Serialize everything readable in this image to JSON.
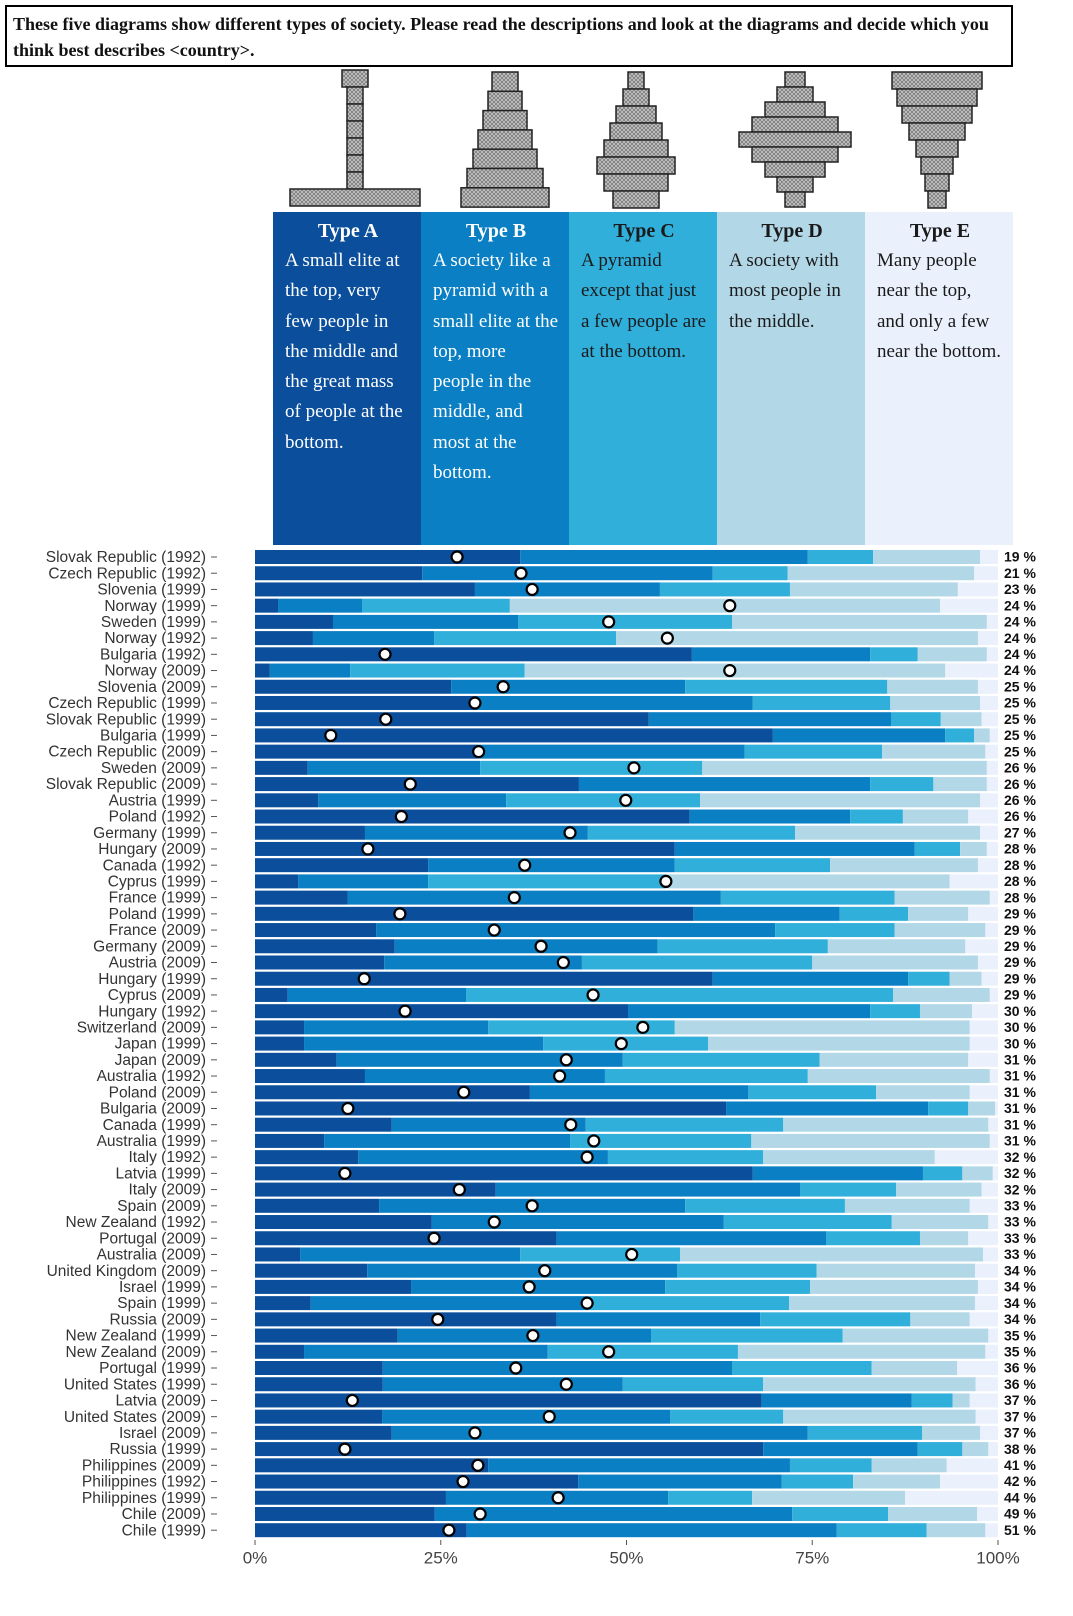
{
  "question": "These five diagrams show different types of society. Please read the descriptions and look at the diagrams and decide which you think best describes <country>.",
  "chart_data": {
    "type": "stacked-bar-horizontal",
    "categories": [
      "Slovak Republic (1992)",
      "Czech Republic (1992)",
      "Slovenia (1999)",
      "Norway (1999)",
      "Sweden (1999)",
      "Norway (1992)",
      "Bulgaria (1992)",
      "Norway (2009)",
      "Slovenia (2009)",
      "Czech Republic (1999)",
      "Slovak Republic (1999)",
      "Bulgaria (1999)",
      "Czech Republic (2009)",
      "Sweden (2009)",
      "Slovak Republic (2009)",
      "Austria (1999)",
      "Poland (1992)",
      "Germany (1999)",
      "Hungary (2009)",
      "Canada (1992)",
      "Cyprus (1999)",
      "France (1999)",
      "Poland (1999)",
      "France (2009)",
      "Germany (2009)",
      "Austria (2009)",
      "Hungary (1999)",
      "Cyprus (2009)",
      "Hungary (1992)",
      "Switzerland (2009)",
      "Japan (1999)",
      "Japan (2009)",
      "Australia (1992)",
      "Poland (2009)",
      "Bulgaria (2009)",
      "Canada (1999)",
      "Australia (1999)",
      "Italy (1992)",
      "Latvia (1999)",
      "Italy (2009)",
      "Spain (2009)",
      "New Zealand (1992)",
      "Portugal (2009)",
      "Australia (2009)",
      "United Kingdom (2009)",
      "Israel (1999)",
      "Spain (1999)",
      "Russia (2009)",
      "New Zealand (1999)",
      "New Zealand (2009)",
      "Portugal (1999)",
      "United States (1999)",
      "Latvia (2009)",
      "United States (2009)",
      "Israel (2009)",
      "Russia (1999)",
      "Philippines (2009)",
      "Philippines (1992)",
      "Philippines (1999)",
      "Chile (2009)",
      "Chile (1999)"
    ],
    "series": [
      {
        "name": "Type A",
        "color": "#0b4f9c",
        "text_color": "#ffffff",
        "description": "A small elite at the top, very few people in the middle and the great mass of people at the bottom.",
        "values": [
          35.7,
          22.5,
          29.6,
          3.1,
          10.5,
          7.8,
          58.8,
          2.0,
          26.4,
          30.0,
          53.0,
          69.7,
          30.0,
          7.1,
          43.6,
          8.5,
          58.5,
          14.8,
          56.5,
          23.3,
          5.8,
          12.5,
          59.0,
          16.3,
          18.8,
          17.4,
          61.6,
          4.4,
          50.2,
          6.6,
          6.6,
          11.0,
          14.8,
          37.0,
          63.4,
          18.4,
          9.3,
          13.9,
          67.0,
          32.4,
          16.7,
          23.8,
          40.6,
          6.1,
          15.1,
          21.0,
          7.5,
          40.6,
          19.2,
          6.6,
          17.2,
          17.2,
          68.2,
          17.1,
          18.4,
          68.4,
          31.4,
          43.5,
          25.7,
          24.2,
          28.5
        ]
      },
      {
        "name": "Type B",
        "color": "#0a7fc3",
        "text_color": "#ffffff",
        "description": "A society like a pyramid with a small elite at the top, more people in the middle, and most at the bottom.",
        "values": [
          38.7,
          39.1,
          24.9,
          11.3,
          24.9,
          16.3,
          24.0,
          10.8,
          31.5,
          37.0,
          32.6,
          23.2,
          35.9,
          23.2,
          39.2,
          25.3,
          21.6,
          30.0,
          32.3,
          33.2,
          17.5,
          50.2,
          19.7,
          53.7,
          35.4,
          26.6,
          26.3,
          24.0,
          32.6,
          24.8,
          32.2,
          38.5,
          32.3,
          29.4,
          27.2,
          26.1,
          33.1,
          33.6,
          22.9,
          41.0,
          41.2,
          39.3,
          36.3,
          29.6,
          41.7,
          34.2,
          37.3,
          27.4,
          34.1,
          32.8,
          47.0,
          32.3,
          20.2,
          38.8,
          56.0,
          20.8,
          40.6,
          27.4,
          29.9,
          48.1,
          49.8
        ]
      },
      {
        "name": "Type C",
        "color": "#30afda",
        "text_color": "#1a1a1a",
        "description": "A pyramid except that just a few people are at the bottom.",
        "values": [
          8.8,
          10.1,
          17.5,
          19.9,
          28.8,
          24.5,
          6.4,
          23.5,
          27.2,
          18.5,
          6.7,
          3.9,
          18.5,
          29.9,
          8.5,
          26.1,
          7.1,
          27.9,
          6.1,
          20.9,
          32.0,
          23.4,
          9.2,
          16.1,
          22.9,
          31.0,
          5.6,
          57.5,
          6.7,
          25.1,
          22.2,
          26.5,
          27.3,
          17.2,
          5.4,
          26.6,
          24.4,
          20.9,
          5.3,
          12.9,
          21.5,
          22.6,
          12.6,
          21.5,
          18.8,
          19.5,
          27.1,
          20.2,
          25.8,
          25.6,
          18.8,
          18.9,
          5.5,
          15.2,
          15.4,
          6.0,
          11.0,
          9.6,
          11.3,
          12.9,
          12.1
        ]
      },
      {
        "name": "Type D",
        "color": "#b2d7e7",
        "text_color": "#1a1a1a",
        "description": "A society with most people in the middle.",
        "values": [
          14.4,
          25.1,
          22.6,
          57.9,
          34.3,
          48.7,
          9.3,
          56.6,
          12.2,
          12.1,
          5.5,
          2.1,
          13.9,
          38.3,
          7.2,
          37.7,
          8.8,
          24.9,
          3.6,
          19.9,
          38.2,
          12.8,
          8.1,
          12.2,
          18.5,
          22.3,
          4.3,
          13.0,
          7.0,
          39.7,
          35.2,
          20.0,
          24.5,
          12.6,
          3.6,
          27.6,
          32.1,
          23.1,
          4.1,
          11.5,
          16.8,
          13.0,
          6.5,
          40.8,
          21.3,
          22.6,
          25.0,
          8.0,
          19.6,
          33.3,
          11.5,
          28.6,
          2.3,
          25.9,
          7.8,
          3.5,
          10.1,
          11.7,
          20.6,
          12.0,
          7.9
        ]
      },
      {
        "name": "Type E",
        "color": "#eaf0fc",
        "text_color": "#1a1a1a",
        "description": "Many people near the top, and only a few near the bottom.",
        "values": [
          2.4,
          3.2,
          5.4,
          7.8,
          1.5,
          2.7,
          1.5,
          7.1,
          2.7,
          2.4,
          2.2,
          1.1,
          1.7,
          1.5,
          1.5,
          2.4,
          4.0,
          2.4,
          1.5,
          2.7,
          6.5,
          1.1,
          4.0,
          1.7,
          4.4,
          2.7,
          2.2,
          1.1,
          3.5,
          3.8,
          3.8,
          4.0,
          1.1,
          3.8,
          0.4,
          1.3,
          1.1,
          8.5,
          0.7,
          2.2,
          3.8,
          1.3,
          4.0,
          2.0,
          3.1,
          2.7,
          3.1,
          3.8,
          1.3,
          1.7,
          5.5,
          3.0,
          3.8,
          3.0,
          2.4,
          1.3,
          6.9,
          7.8,
          12.5,
          2.8,
          1.7
        ]
      }
    ],
    "markers": [
      27.2,
      35.8,
      37.3,
      63.9,
      47.6,
      55.5,
      17.5,
      63.9,
      33.4,
      29.6,
      17.6,
      10.2,
      30.1,
      51.0,
      20.9,
      49.9,
      19.7,
      42.4,
      15.2,
      36.3,
      55.3,
      34.9,
      19.5,
      32.2,
      38.5,
      41.5,
      14.7,
      45.5,
      20.2,
      52.2,
      49.3,
      41.9,
      41.0,
      28.1,
      12.5,
      42.5,
      45.6,
      44.7,
      12.1,
      27.5,
      37.3,
      32.2,
      24.1,
      50.7,
      39.0,
      36.9,
      44.7,
      24.6,
      37.4,
      47.6,
      35.1,
      41.9,
      13.1,
      39.6,
      29.6,
      12.1,
      30.0,
      28.0,
      40.8,
      30.3,
      26.1
    ],
    "right_values": [
      19,
      21,
      23,
      24,
      24,
      24,
      24,
      24,
      25,
      25,
      25,
      25,
      25,
      26,
      26,
      26,
      26,
      27,
      28,
      28,
      28,
      28,
      29,
      29,
      29,
      29,
      29,
      29,
      30,
      30,
      30,
      31,
      31,
      31,
      31,
      31,
      31,
      32,
      32,
      32,
      33,
      33,
      33,
      33,
      34,
      34,
      34,
      34,
      35,
      35,
      36,
      36,
      37,
      37,
      37,
      38,
      41,
      42,
      44,
      49,
      51
    ],
    "right_value_labels": [
      "19 %",
      "21 %",
      "23 %",
      "24 %",
      "24 %",
      "24 %",
      "24 %",
      "24 %",
      "25 %",
      "25 %",
      "25 %",
      "25 %",
      "25 %",
      "26 %",
      "26 %",
      "26 %",
      "26 %",
      "27 %",
      "28 %",
      "28 %",
      "28 %",
      "28 %",
      "29 %",
      "29 %",
      "29 %",
      "29 %",
      "29 %",
      "29 %",
      "30 %",
      "30 %",
      "30 %",
      "31 %",
      "31 %",
      "31 %",
      "31 %",
      "31 %",
      "31 %",
      "32 %",
      "32 %",
      "32 %",
      "33 %",
      "33 %",
      "33 %",
      "33 %",
      "34 %",
      "34 %",
      "34 %",
      "34 %",
      "35 %",
      "35 %",
      "36 %",
      "36 %",
      "37 %",
      "37 %",
      "37 %",
      "38 %",
      "41 %",
      "42 %",
      "44 %",
      "49 %",
      "51 %"
    ],
    "xlim": [
      0,
      100
    ],
    "xticks": [
      {
        "value": 0,
        "label": "0%"
      },
      {
        "value": 25,
        "label": "25%"
      },
      {
        "value": 50,
        "label": "50%"
      },
      {
        "value": 75,
        "label": "75%"
      },
      {
        "value": 100,
        "label": "100%"
      }
    ]
  }
}
